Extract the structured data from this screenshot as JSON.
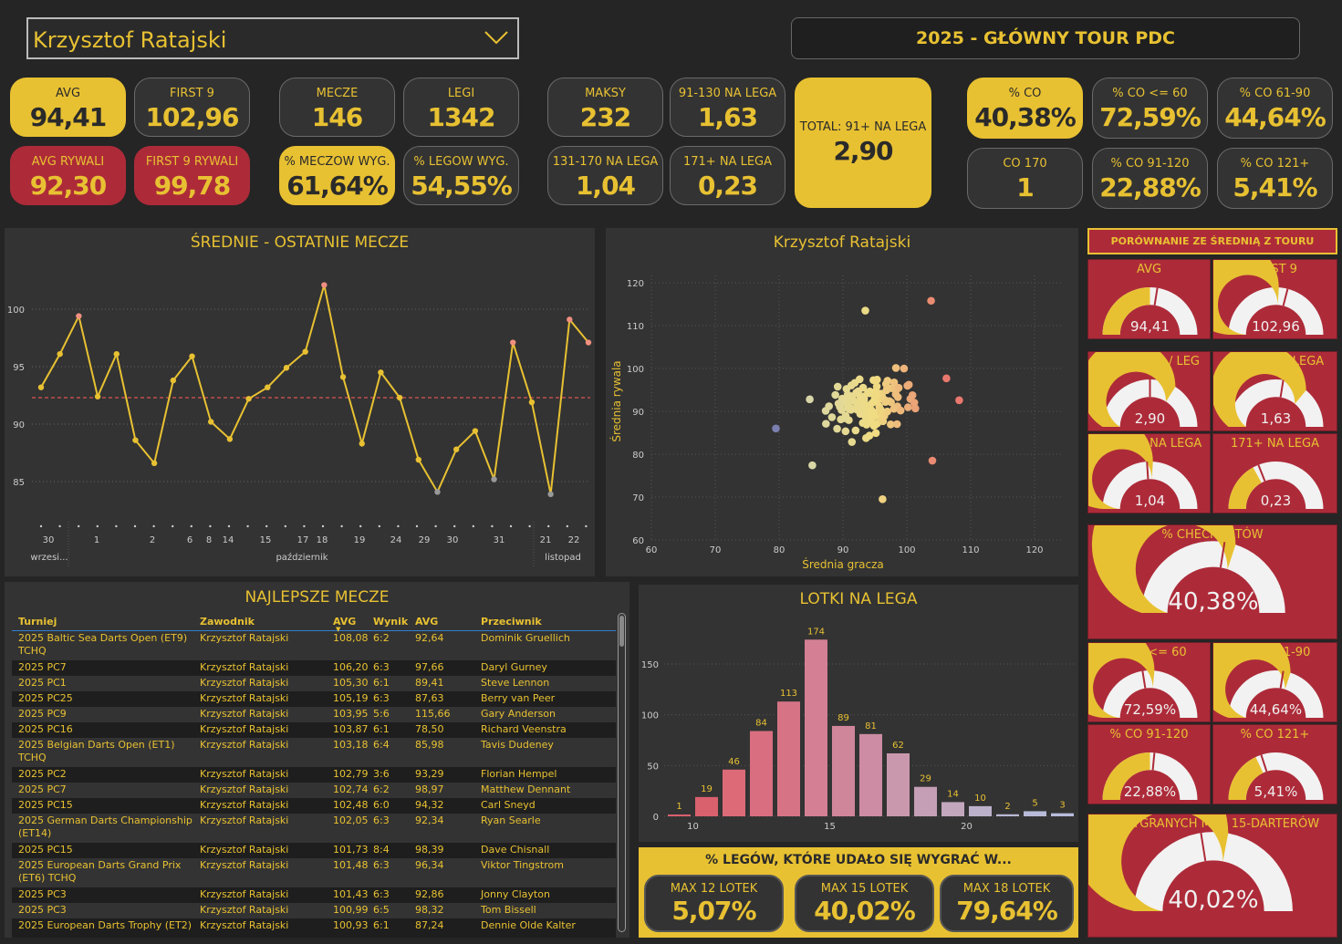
{
  "header": {
    "player": "Krzysztof Ratajski",
    "tour": "2025 - GŁÓWNY TOUR PDC"
  },
  "kpis": {
    "avg": {
      "label": "AVG",
      "value": "94,41"
    },
    "first9": {
      "label": "FIRST 9",
      "value": "102,96"
    },
    "avg_opp": {
      "label": "AVG RYWALI",
      "value": "92,30"
    },
    "first9_opp": {
      "label": "FIRST 9 RYWALI",
      "value": "99,78"
    },
    "matches": {
      "label": "MECZE",
      "value": "146"
    },
    "legs": {
      "label": "LEGI",
      "value": "1342"
    },
    "match_win": {
      "label": "% MECZÓW WYG.",
      "value": "61,64%"
    },
    "leg_win": {
      "label": "% LEGÓW WYG.",
      "value": "54,55%"
    },
    "max": {
      "label": "MAKSY",
      "value": "232"
    },
    "r91_130": {
      "label": "91-130 NA LEGA",
      "value": "1,63"
    },
    "r131_170": {
      "label": "131-170 NA LEGA",
      "value": "1,04"
    },
    "r171": {
      "label": "171+ NA LEGA",
      "value": "0,23"
    },
    "total91": {
      "label": "TOTAL: 91+ NA LEGA",
      "value": "2,90"
    },
    "co": {
      "label": "% CO",
      "value": "40,38%"
    },
    "co60": {
      "label": "% CO <= 60",
      "value": "72,59%"
    },
    "co61_90": {
      "label": "% CO 61-90",
      "value": "44,64%"
    },
    "co170": {
      "label": "CO 170",
      "value": "1"
    },
    "co91_120": {
      "label": "% CO 91-120",
      "value": "22,88%"
    },
    "co121": {
      "label": "% CO 121+",
      "value": "5,41%"
    }
  },
  "line": {
    "title": "ŚREDNIE - OSTATNIE MECZE",
    "yticks": [
      "100",
      "95",
      "90",
      "85"
    ],
    "day_labels": [
      "30",
      "1",
      "2",
      "6",
      "8",
      "14",
      "15",
      "17",
      "18",
      "19",
      "24",
      "29",
      "30",
      "31",
      "21",
      "22"
    ],
    "month_labels": [
      "wrzesi...",
      "październik",
      "listopad"
    ],
    "reference": 92.3
  },
  "scatter": {
    "title": "Krzysztof Ratajski",
    "xlabel": "Średnia gracza",
    "ylabel": "Średnia rywala",
    "xticks": [
      "60",
      "70",
      "80",
      "90",
      "100",
      "110",
      "120"
    ],
    "yticks": [
      "120",
      "110",
      "100",
      "90",
      "80",
      "70",
      "60"
    ]
  },
  "table": {
    "title": "NAJLEPSZE MECZE",
    "headers": [
      "Turniej",
      "Zawodnik",
      "AVG",
      "Wynik",
      "AVG",
      "Przeciwnik"
    ],
    "rows": [
      [
        "2025 Baltic Sea Darts Open (ET9) TCHQ",
        "Krzysztof Ratajski",
        "108,08",
        "6:2",
        "92,64",
        "Dominik Gruellich"
      ],
      [
        "2025 PC7",
        "Krzysztof Ratajski",
        "106,20",
        "6:3",
        "97,66",
        "Daryl Gurney"
      ],
      [
        "2025 PC1",
        "Krzysztof Ratajski",
        "105,30",
        "6:1",
        "89,41",
        "Steve Lennon"
      ],
      [
        "2025 PC25",
        "Krzysztof Ratajski",
        "105,19",
        "6:3",
        "87,63",
        "Berry van Peer"
      ],
      [
        "2025 PC9",
        "Krzysztof Ratajski",
        "103,95",
        "5:6",
        "115,66",
        "Gary Anderson"
      ],
      [
        "2025 PC16",
        "Krzysztof Ratajski",
        "103,87",
        "6:1",
        "78,50",
        "Richard Veenstra"
      ],
      [
        "2025 Belgian Darts Open (ET1) TCHQ",
        "Krzysztof Ratajski",
        "103,18",
        "6:4",
        "85,98",
        "Tavis Dudeney"
      ],
      [
        "2025 PC2",
        "Krzysztof Ratajski",
        "102,79",
        "3:6",
        "93,29",
        "Florian Hempel"
      ],
      [
        "2025 PC7",
        "Krzysztof Ratajski",
        "102,74",
        "6:2",
        "98,97",
        "Matthew Dennant"
      ],
      [
        "2025 PC15",
        "Krzysztof Ratajski",
        "102,48",
        "6:0",
        "94,32",
        "Carl Sneyd"
      ],
      [
        "2025 German Darts Championship (ET14)",
        "Krzysztof Ratajski",
        "102,05",
        "6:3",
        "92,34",
        "Ryan Searle"
      ],
      [
        "2025 PC15",
        "Krzysztof Ratajski",
        "101,73",
        "8:4",
        "98,39",
        "Dave Chisnall"
      ],
      [
        "2025 European Darts Grand Prix (ET6) TCHQ",
        "Krzysztof Ratajski",
        "101,48",
        "6:3",
        "96,34",
        "Viktor Tingstrom"
      ],
      [
        "2025 PC3",
        "Krzysztof Ratajski",
        "101,43",
        "6:3",
        "92,86",
        "Jonny Clayton"
      ],
      [
        "2025 PC3",
        "Krzysztof Ratajski",
        "100,99",
        "6:5",
        "98,32",
        "Tom Bissell"
      ],
      [
        "2025 European Darts Trophy (ET2)",
        "Krzysztof Ratajski",
        "100,93",
        "6:1",
        "87,24",
        "Dennie Olde Kalter"
      ]
    ]
  },
  "chart_data": {
    "type": "bar",
    "title": "LOTKI NA LEGA",
    "categories": [
      9,
      10,
      11,
      12,
      13,
      14,
      15,
      16,
      17,
      18,
      19,
      20,
      21,
      22,
      23,
      24,
      25
    ],
    "values": [
      1,
      19,
      46,
      84,
      113,
      174,
      89,
      81,
      62,
      29,
      14,
      10,
      2,
      5,
      3,
      0,
      0
    ],
    "xticks": [
      "10",
      "15",
      "20"
    ],
    "yticks": [
      "150",
      "100",
      "50",
      "0"
    ],
    "ylim": [
      0,
      180
    ]
  },
  "checkout_box": {
    "title": "% LEGÓW, KTÓRE UDAŁO SIĘ WYGRAĆ W...",
    "items": [
      {
        "label": "MAX 12 LOTEK",
        "value": "5,07%"
      },
      {
        "label": "MAX 15 LOTEK",
        "value": "40,02%"
      },
      {
        "label": "MAX 18 LOTEK",
        "value": "79,64%"
      }
    ]
  },
  "gauges": {
    "header": "PORÓWNANIE ZE ŚREDNIĄ Z TOURU",
    "items": [
      {
        "label": "AVG",
        "value": "94,41",
        "fill": 0.5,
        "target": 0.55
      },
      {
        "label": "FIRST 9",
        "value": "102,96",
        "fill": 0.52,
        "target": 0.58
      },
      {
        "label": "TOTAL 91+ / LEG",
        "value": "2,90",
        "fill": 0.68,
        "target": 0.5
      },
      {
        "label": "91-130 NA LEGA",
        "value": "1,63",
        "fill": 0.72,
        "target": 0.55
      },
      {
        "label": "131-170 NA LEGA",
        "value": "1,04",
        "fill": 0.52,
        "target": 0.48
      },
      {
        "label": "171+ NA LEGA",
        "value": "0,23",
        "fill": 0.34,
        "target": 0.38
      },
      {
        "label": "% CHECKOUTÓW",
        "value": "40,38%",
        "fill": 0.6,
        "target": 0.55
      },
      {
        "label": "% CO <= 60",
        "value": "72,59%",
        "fill": 0.53,
        "target": 0.45
      },
      {
        "label": "% CO 61-90",
        "value": "44,64%",
        "fill": 0.6,
        "target": 0.55
      },
      {
        "label": "% CO 91-120",
        "value": "22,88%",
        "fill": 0.5,
        "target": 0.53
      },
      {
        "label": "% CO 121+",
        "value": "5,41%",
        "fill": 0.36,
        "target": 0.4
      },
      {
        "label": "% WYGRANYCH MAX 15-DARTERÓW",
        "value": "40,02%",
        "fill": 0.56,
        "target": 0.45
      }
    ]
  },
  "colors": {
    "accent": "#e8c132",
    "red": "#ad2b39",
    "panel": "#333333",
    "bg": "#252525"
  }
}
